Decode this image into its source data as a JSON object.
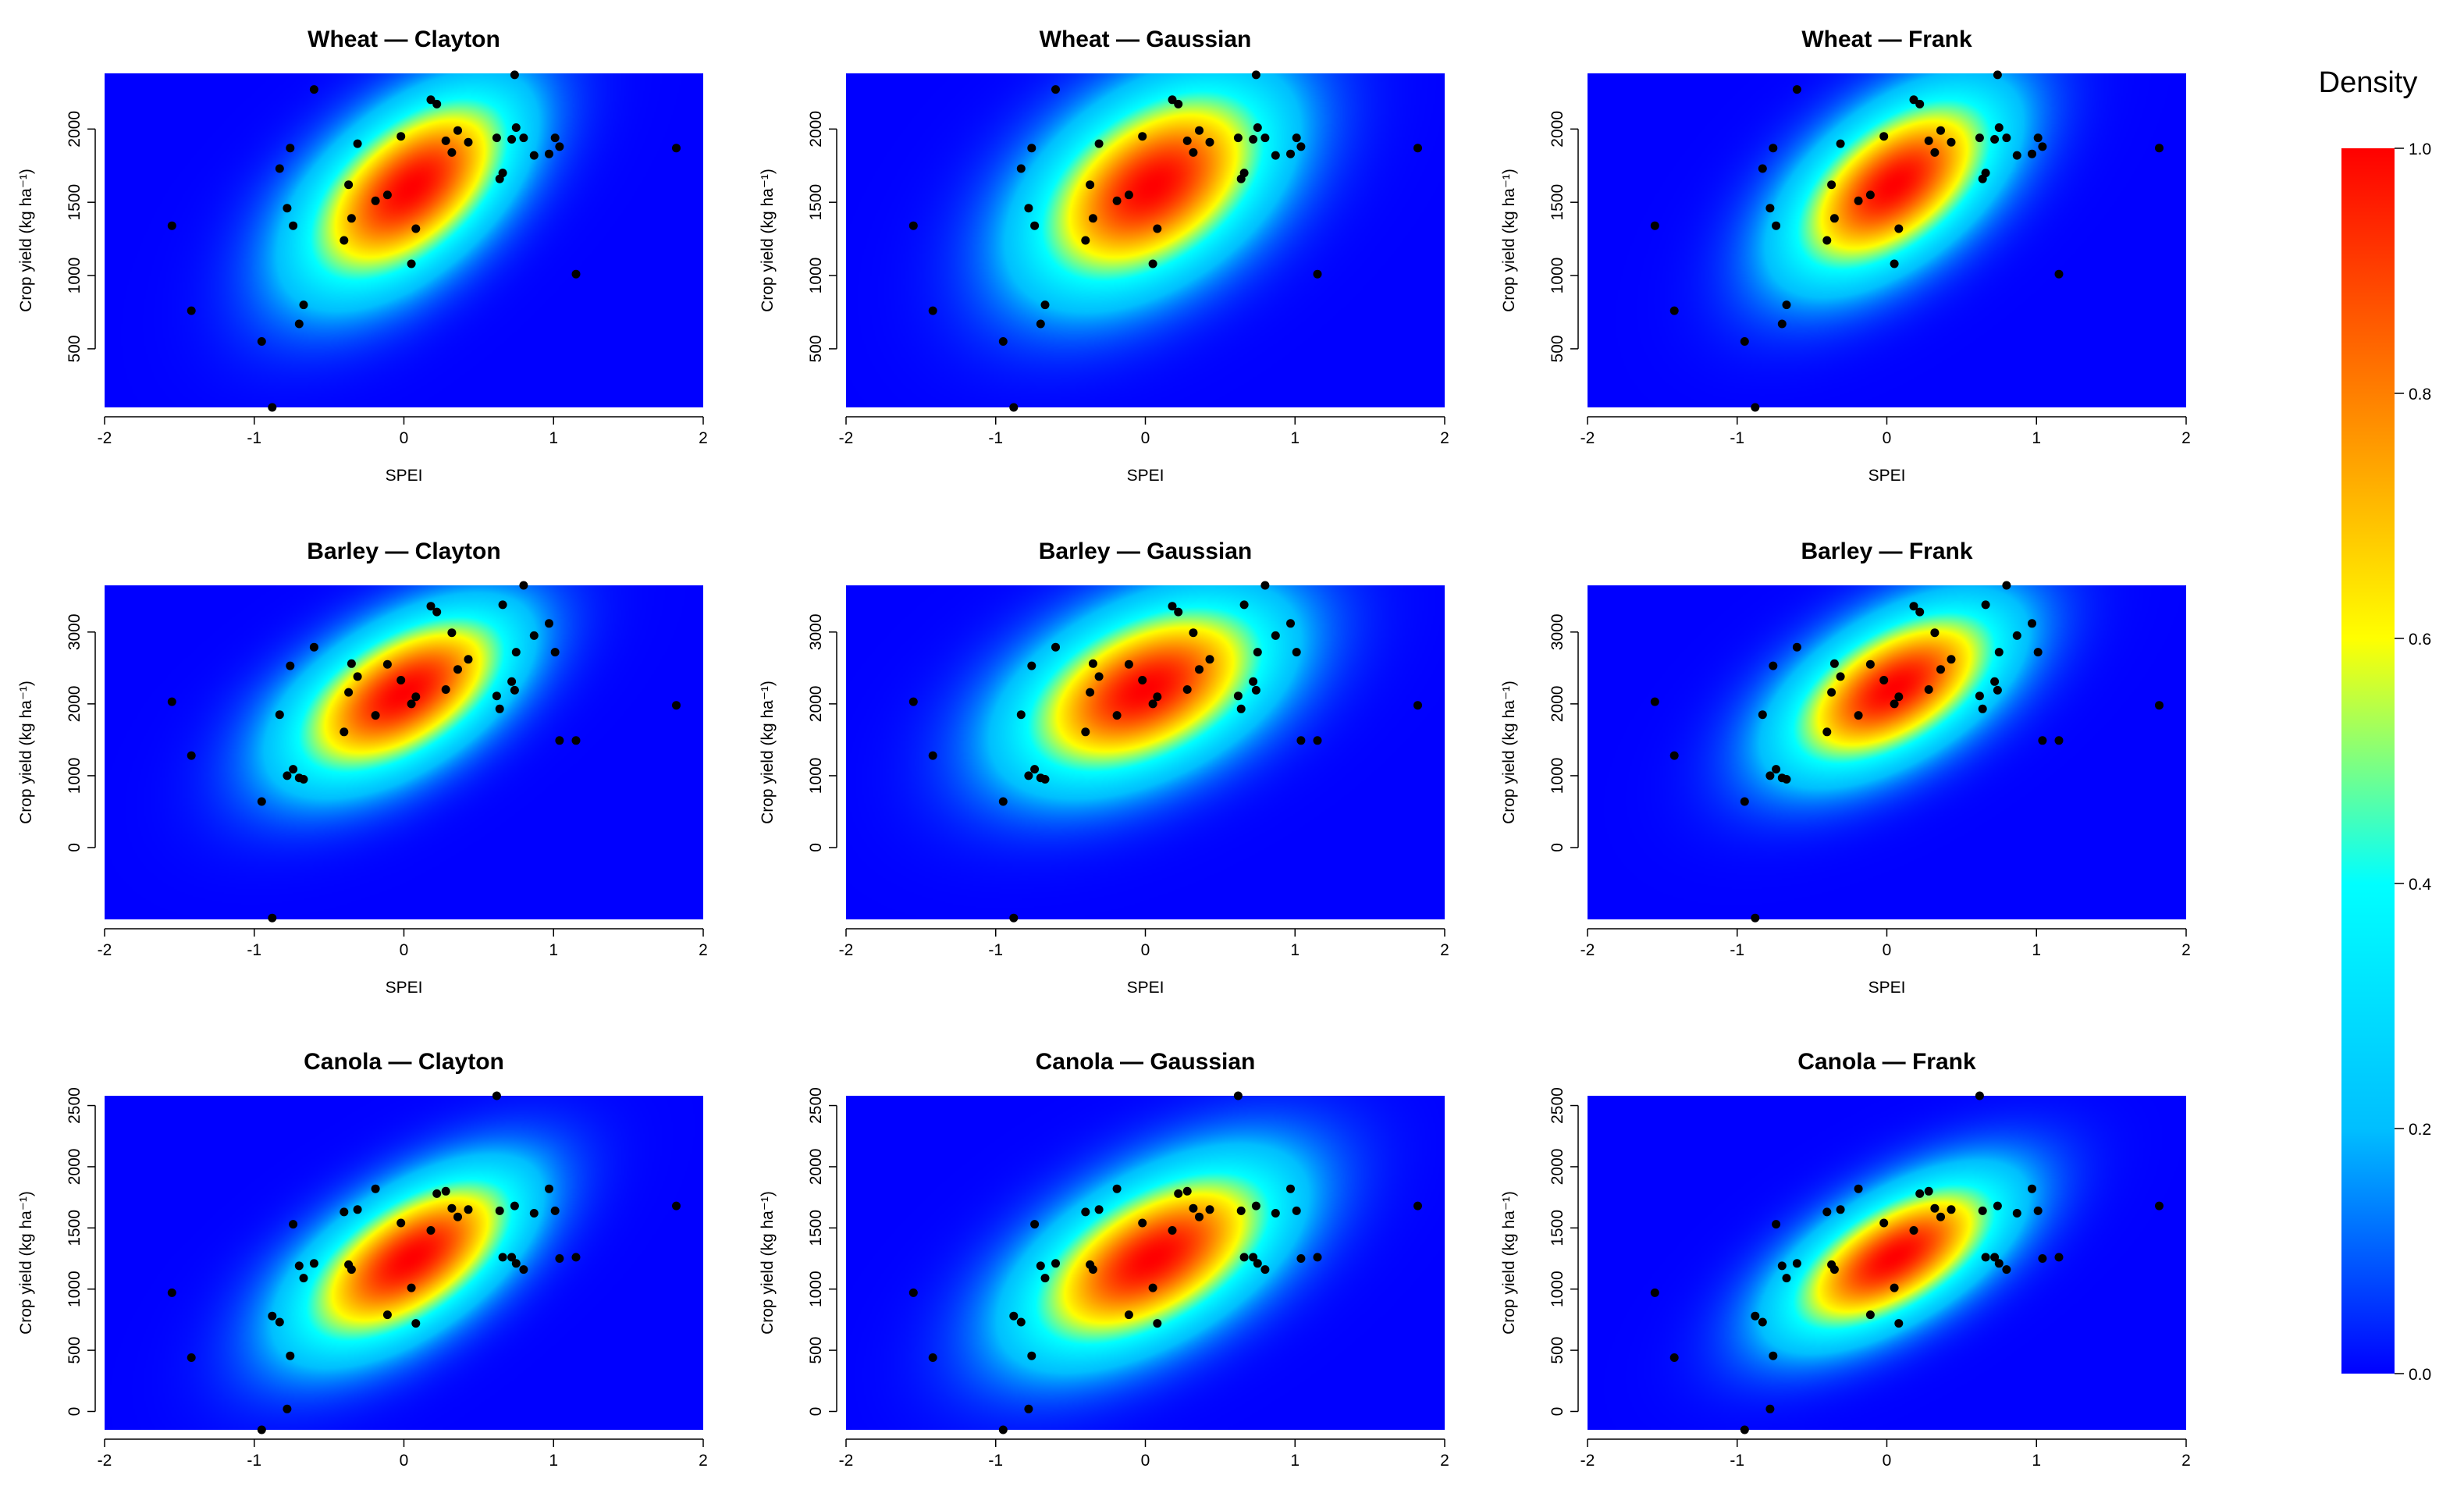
{
  "chart_data": {
    "type": "heatmap",
    "description_units": "SPEI (x) vs crop yield in kg ha-1 (y); background is normalized copula density 0-1",
    "legend": {
      "title": "Density",
      "ticks": [
        "0.0",
        "0.2",
        "0.4",
        "0.6",
        "0.8",
        "1.0"
      ],
      "min": 0,
      "max": 1,
      "colors": [
        "#0000ff",
        "#00bfff",
        "#00ffff",
        "#ffff00",
        "#ff7f00",
        "#ff0000"
      ]
    },
    "point_color": "#000000",
    "x_axis": {
      "label": "SPEI",
      "range": [
        -2,
        2
      ],
      "ticks": [
        "-2",
        "-1",
        "0",
        "1",
        "2"
      ]
    },
    "y_label": "Crop yield (kg ha⁻¹)",
    "spei": [
      -1.55,
      -1.42,
      -0.95,
      -0.88,
      -0.83,
      -0.78,
      -0.76,
      -0.74,
      -0.7,
      -0.67,
      -0.6,
      -0.4,
      -0.37,
      -0.35,
      -0.31,
      -0.19,
      -0.11,
      -0.02,
      0.05,
      0.08,
      0.18,
      0.22,
      0.28,
      0.32,
      0.36,
      0.43,
      0.62,
      0.64,
      0.66,
      0.72,
      0.74,
      0.75,
      0.8,
      0.87,
      0.97,
      1.01,
      1.04,
      1.15,
      1.82
    ],
    "crops": [
      {
        "name": "Wheat",
        "ylim": [
          100,
          2380
        ],
        "yticks": [
          "500",
          "1000",
          "1500",
          "2000"
        ],
        "yield": [
          1340,
          760,
          550,
          100,
          1730,
          1460,
          1870,
          1340,
          670,
          800,
          2270,
          1240,
          1620,
          1390,
          1900,
          1510,
          1550,
          1950,
          1080,
          1320,
          2200,
          2170,
          1920,
          1840,
          1990,
          1910,
          1940,
          1660,
          1700,
          1930,
          2370,
          2010,
          1940,
          1820,
          1830,
          1940,
          1880,
          1010,
          1870
        ],
        "copulas": [
          {
            "name": "Clayton",
            "title": "Wheat — Clayton",
            "mean_x": 0.05,
            "mean_y": 1600,
            "sd_x": 0.5,
            "sd_y": 470,
            "rho": 0.55,
            "tail": 0.9
          },
          {
            "name": "Gaussian",
            "title": "Wheat — Gaussian",
            "mean_x": 0.05,
            "mean_y": 1610,
            "sd_x": 0.55,
            "sd_y": 480,
            "rho": 0.45,
            "tail": 0
          },
          {
            "name": "Frank",
            "title": "Wheat — Frank",
            "mean_x": 0.05,
            "mean_y": 1620,
            "sd_x": 0.48,
            "sd_y": 430,
            "rho": 0.55,
            "tail": 0
          }
        ]
      },
      {
        "name": "Barley",
        "ylim": [
          -1000,
          3650
        ],
        "yticks": [
          "0",
          "1000",
          "2000",
          "3000"
        ],
        "yield": [
          2030,
          1280,
          640,
          -980,
          1850,
          1000,
          2530,
          1090,
          970,
          950,
          2790,
          1610,
          2160,
          2560,
          2380,
          1840,
          2550,
          2330,
          2000,
          2100,
          3360,
          3280,
          2200,
          2990,
          2480,
          2620,
          2110,
          1930,
          3380,
          2310,
          2190,
          2720,
          3650,
          2950,
          3120,
          2720,
          1490,
          1490,
          1980
        ],
        "copulas": [
          {
            "name": "Clayton",
            "title": "Barley — Clayton",
            "mean_x": 0.0,
            "mean_y": 2150,
            "sd_x": 0.52,
            "sd_y": 820,
            "rho": 0.55,
            "tail": 0.9
          },
          {
            "name": "Gaussian",
            "title": "Barley — Gaussian",
            "mean_x": 0.0,
            "mean_y": 2200,
            "sd_x": 0.58,
            "sd_y": 850,
            "rho": 0.45,
            "tail": 0
          },
          {
            "name": "Frank",
            "title": "Barley — Frank",
            "mean_x": 0.05,
            "mean_y": 2220,
            "sd_x": 0.5,
            "sd_y": 780,
            "rho": 0.55,
            "tail": 0
          }
        ]
      },
      {
        "name": "Canola",
        "ylim": [
          -150,
          2580
        ],
        "yticks": [
          "0",
          "500",
          "1000",
          "1500",
          "2000",
          "2500"
        ],
        "yield": [
          970,
          440,
          -150,
          780,
          730,
          20,
          455,
          1530,
          1190,
          1090,
          1210,
          1630,
          1200,
          1160,
          1650,
          1820,
          790,
          1540,
          1010,
          720,
          1480,
          1780,
          1800,
          1660,
          1590,
          1650,
          2580,
          1640,
          1260,
          1260,
          1680,
          1210,
          1160,
          1620,
          1820,
          1640,
          1250,
          1260,
          1680
        ],
        "copulas": [
          {
            "name": "Clayton",
            "title": "Canola — Clayton",
            "mean_x": 0.05,
            "mean_y": 1250,
            "sd_x": 0.52,
            "sd_y": 500,
            "rho": 0.6,
            "tail": 0.9
          },
          {
            "name": "Gaussian",
            "title": "Canola — Gaussian",
            "mean_x": 0.05,
            "mean_y": 1250,
            "sd_x": 0.58,
            "sd_y": 520,
            "rho": 0.55,
            "tail": 0
          },
          {
            "name": "Frank",
            "title": "Canola — Frank",
            "mean_x": 0.05,
            "mean_y": 1260,
            "sd_x": 0.5,
            "sd_y": 440,
            "rho": 0.62,
            "tail": 0
          }
        ]
      }
    ]
  }
}
